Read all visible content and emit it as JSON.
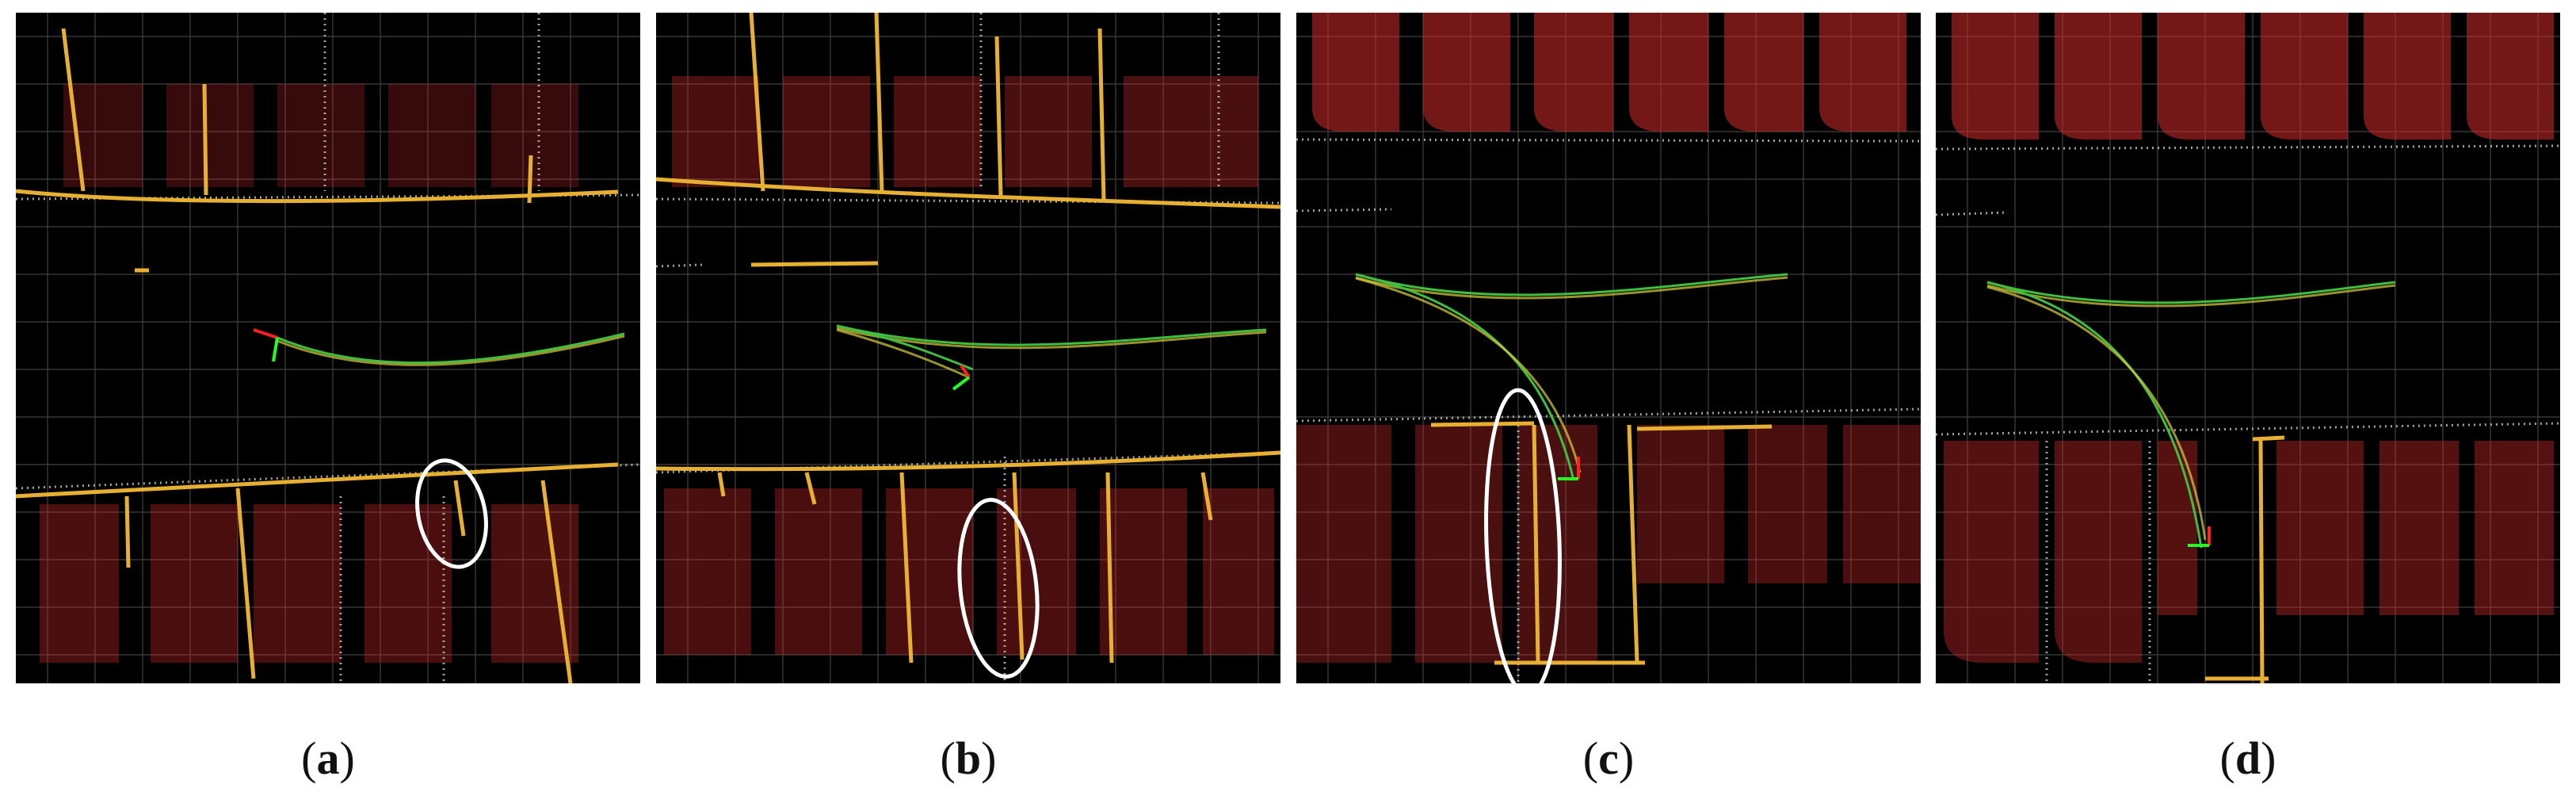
{
  "panels": [
    {
      "id": "a",
      "label": "a"
    },
    {
      "id": "b",
      "label": "b"
    },
    {
      "id": "c",
      "label": "c"
    },
    {
      "id": "d",
      "label": "d"
    }
  ],
  "colors": {
    "background": "#000000",
    "grid": "#555555",
    "point_cloud_red": "#d42a2a",
    "point_cloud_white": "#c8c8c8",
    "line_feature_yellow": "#e8b030",
    "trajectory_green": "#3fbf3f",
    "trajectory_yellow": "#d8d040",
    "axis_red": "#ff2020",
    "axis_green": "#20ff20",
    "ellipse": "#ffffff"
  }
}
